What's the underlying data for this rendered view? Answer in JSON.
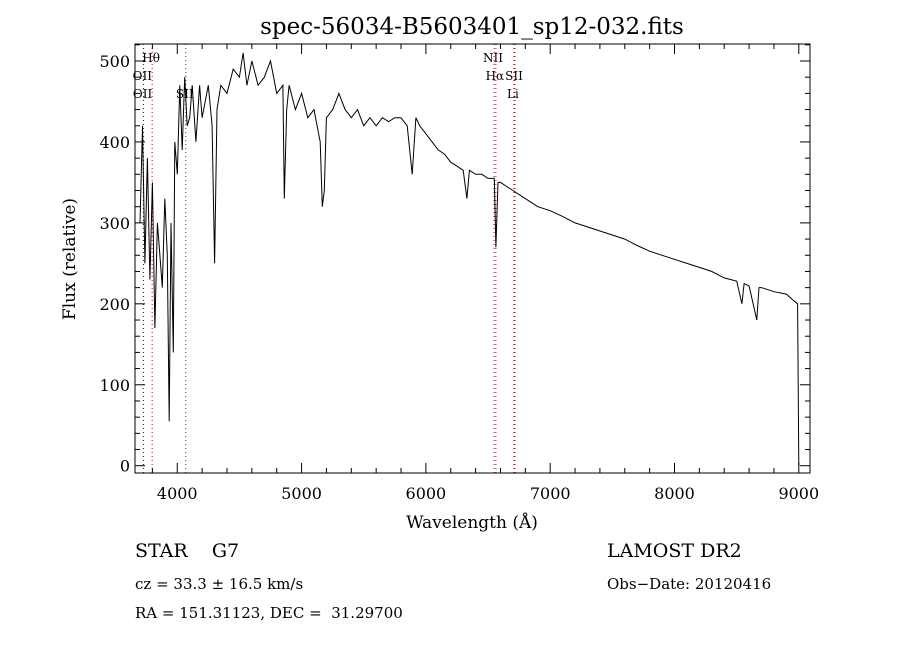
{
  "chart_data": {
    "type": "line",
    "title": "spec-56034-B5603401_sp12-032.fits",
    "xlabel": "Wavelength (Å)",
    "ylabel": "Flux (relative)",
    "xlim": [
      3660,
      9090
    ],
    "ylim": [
      -9,
      521
    ],
    "xticks": [
      4000,
      5000,
      6000,
      7000,
      8000,
      9000
    ],
    "yticks": [
      0,
      100,
      200,
      300,
      400,
      500
    ],
    "grid": false,
    "line_color": "#000000",
    "marker_line_color": "#8b1a1a",
    "lines": [
      {
        "label": "Hθ",
        "wavelength": 3798,
        "row": 0
      },
      {
        "label": "OII",
        "wavelength": 3727,
        "row": 1
      },
      {
        "label": "OII",
        "wavelength": 3729,
        "row": 2
      },
      {
        "label": "SII",
        "wavelength": 4068,
        "row": 2
      },
      {
        "label": "NII",
        "wavelength": 6548,
        "row": 0
      },
      {
        "label": "Hα",
        "wavelength": 6563,
        "row": 1
      },
      {
        "label": "SII",
        "wavelength": 6717,
        "row": 1
      },
      {
        "label": "Li",
        "wavelength": 6708,
        "row": 2
      }
    ],
    "series": [
      {
        "name": "flux",
        "x": [
          3700,
          3720,
          3740,
          3760,
          3780,
          3800,
          3820,
          3840,
          3860,
          3880,
          3900,
          3920,
          3935,
          3950,
          3968,
          3980,
          4000,
          4020,
          4040,
          4060,
          4080,
          4100,
          4120,
          4150,
          4180,
          4200,
          4250,
          4280,
          4300,
          4320,
          4350,
          4400,
          4450,
          4500,
          4530,
          4560,
          4600,
          4650,
          4700,
          4750,
          4800,
          4850,
          4861,
          4880,
          4900,
          4950,
          5000,
          5050,
          5100,
          5150,
          5167,
          5183,
          5200,
          5250,
          5300,
          5350,
          5400,
          5450,
          5500,
          5550,
          5600,
          5650,
          5700,
          5750,
          5800,
          5850,
          5890,
          5920,
          5950,
          6000,
          6050,
          6100,
          6150,
          6200,
          6250,
          6300,
          6330,
          6350,
          6400,
          6450,
          6500,
          6550,
          6563,
          6580,
          6600,
          6650,
          6700,
          6750,
          6800,
          6850,
          6900,
          7000,
          7100,
          7200,
          7300,
          7400,
          7500,
          7600,
          7700,
          7800,
          7900,
          8000,
          8100,
          8200,
          8300,
          8400,
          8500,
          8542,
          8560,
          8600,
          8662,
          8680,
          8700,
          8800,
          8900,
          8950,
          8990,
          9000
        ],
        "y": [
          300,
          420,
          250,
          380,
          230,
          350,
          170,
          300,
          260,
          220,
          330,
          260,
          55,
          300,
          140,
          400,
          360,
          470,
          390,
          480,
          420,
          430,
          470,
          400,
          470,
          430,
          470,
          420,
          250,
          440,
          470,
          460,
          490,
          480,
          510,
          470,
          500,
          470,
          480,
          500,
          460,
          470,
          330,
          440,
          470,
          440,
          460,
          430,
          440,
          400,
          320,
          340,
          430,
          440,
          460,
          440,
          430,
          440,
          420,
          430,
          420,
          430,
          425,
          430,
          430,
          420,
          360,
          430,
          420,
          410,
          400,
          390,
          385,
          375,
          370,
          365,
          330,
          365,
          360,
          360,
          355,
          355,
          270,
          350,
          350,
          345,
          340,
          335,
          330,
          325,
          320,
          315,
          308,
          300,
          295,
          290,
          285,
          280,
          272,
          265,
          260,
          255,
          250,
          245,
          240,
          232,
          228,
          200,
          225,
          222,
          180,
          220,
          220,
          215,
          212,
          205,
          200,
          0
        ]
      }
    ]
  },
  "info": {
    "class": "STAR    G7",
    "survey": "LAMOST DR2",
    "cz": "cz = 33.3 ± 16.5 km/s",
    "obs_date": "Obs−Date: 20120416",
    "radec": "RA = 151.31123, DEC =  31.29700"
  }
}
